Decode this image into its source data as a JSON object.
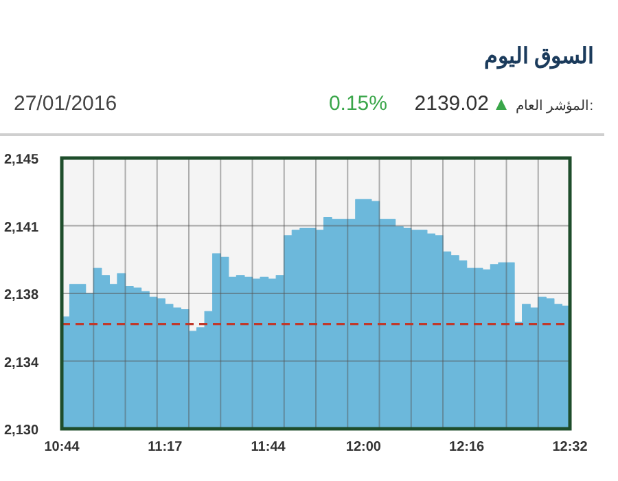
{
  "chart_data": {
    "type": "area",
    "title": "السوق اليوم",
    "annotations": [
      "المؤشر العام:",
      "2139.02",
      "0.15%",
      "27/01/2016"
    ],
    "categories": [
      "10:44",
      null,
      null,
      null,
      null,
      null,
      null,
      null,
      null,
      null,
      null,
      null,
      null,
      "11:17",
      null,
      null,
      null,
      null,
      null,
      null,
      null,
      null,
      null,
      null,
      null,
      null,
      "11:44",
      null,
      null,
      null,
      null,
      null,
      null,
      null,
      null,
      null,
      null,
      null,
      "12:00",
      null,
      null,
      null,
      null,
      null,
      null,
      null,
      null,
      null,
      null,
      null,
      null,
      "12:16",
      null,
      null,
      null,
      null,
      null,
      null,
      null,
      null,
      null,
      null,
      null,
      null,
      "12:32"
    ],
    "series": [
      {
        "color": "#6cb8db",
        "values": [
          2136.2,
          2138.0,
          2138.0,
          2137.5,
          2138.9,
          2138.5,
          2138.0,
          2138.6,
          2137.9,
          2137.8,
          2137.6,
          2137.3,
          2137.2,
          2136.9,
          2136.7,
          2136.6,
          2135.4,
          2135.6,
          2136.5,
          2139.7,
          2139.5,
          2138.4,
          2138.5,
          2138.4,
          2138.3,
          2138.4,
          2138.3,
          2138.5,
          2140.7,
          2141.0,
          2141.1,
          2141.1,
          2141.0,
          2141.7,
          2141.6,
          2141.6,
          2141.6,
          2142.7,
          2142.7,
          2142.6,
          2141.6,
          2141.6,
          2141.2,
          2141.1,
          2141.0,
          2141.0,
          2140.8,
          2140.7,
          2139.8,
          2139.6,
          2139.3,
          2138.9,
          2138.9,
          2138.8,
          2139.1,
          2139.2,
          2139.2,
          2135.9,
          2136.9,
          2136.7,
          2137.3,
          2137.2,
          2136.9,
          2136.8,
          2136.8
        ]
      }
    ],
    "ylim": [
      2130,
      2145
    ],
    "yticks": [
      {
        "value": 2130,
        "label": "2,130"
      },
      {
        "value": 2133.75,
        "label": "2,134"
      },
      {
        "value": 2137.5,
        "label": "2,138"
      },
      {
        "value": 2141.25,
        "label": "2,141"
      },
      {
        "value": 2145,
        "label": "2,145"
      }
    ],
    "grid": true,
    "ref_lines": [
      {
        "axis": "y",
        "value": 2135.8,
        "color": "#c0392b",
        "line_style": "dashed"
      }
    ]
  }
}
